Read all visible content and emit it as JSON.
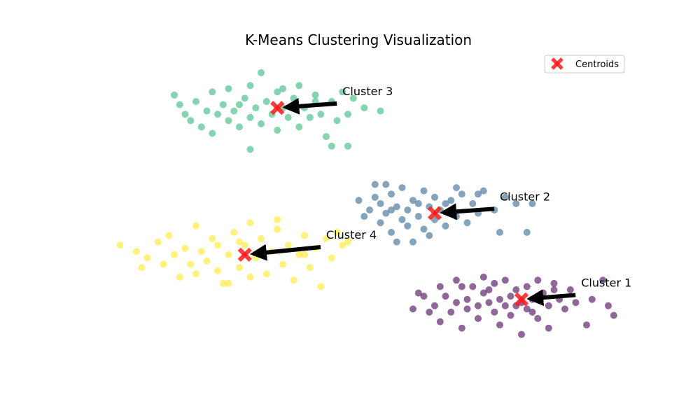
{
  "chart_data": {
    "type": "scatter",
    "title": "K-Means Clustering Visualization",
    "xlabel": "",
    "ylabel": "",
    "xlim": [
      0,
      10
    ],
    "ylim": [
      0,
      10
    ],
    "axes_visible": false,
    "grid": false,
    "legend": {
      "position": "top-right",
      "entries": [
        "Centroids"
      ]
    },
    "colors": {
      "cluster_1": "#440154",
      "cluster_2": "#31688e",
      "cluster_3": "#35b779",
      "cluster_4": "#fde725",
      "centroid": "#ff1a1a",
      "arrow": "#000000"
    },
    "series": [
      {
        "cluster": 1,
        "color_key": "cluster_1",
        "points": [
          [
            6.0,
            1.9
          ],
          [
            6.2,
            2.3
          ],
          [
            6.3,
            1.8
          ],
          [
            6.4,
            2.0
          ],
          [
            6.5,
            2.6
          ],
          [
            6.5,
            1.5
          ],
          [
            6.6,
            2.3
          ],
          [
            6.7,
            1.8
          ],
          [
            6.8,
            2.1
          ],
          [
            6.9,
            2.6
          ],
          [
            6.9,
            1.3
          ],
          [
            7.0,
            2.2
          ],
          [
            7.0,
            1.9
          ],
          [
            7.1,
            2.6
          ],
          [
            7.2,
            2.0
          ],
          [
            7.2,
            1.6
          ],
          [
            7.3,
            2.9
          ],
          [
            7.3,
            2.4
          ],
          [
            7.4,
            2.1
          ],
          [
            7.5,
            2.7
          ],
          [
            7.5,
            1.8
          ],
          [
            7.6,
            2.2
          ],
          [
            7.6,
            1.4
          ],
          [
            7.7,
            2.8
          ],
          [
            7.7,
            2.0
          ],
          [
            7.8,
            2.3
          ],
          [
            7.8,
            1.7
          ],
          [
            7.9,
            2.5
          ],
          [
            8.0,
            2.1
          ],
          [
            8.0,
            1.1
          ],
          [
            8.1,
            2.6
          ],
          [
            8.1,
            1.9
          ],
          [
            8.2,
            2.2
          ],
          [
            8.3,
            2.8
          ],
          [
            8.3,
            1.6
          ],
          [
            8.4,
            2.4
          ],
          [
            8.5,
            2.0
          ],
          [
            8.5,
            1.3
          ],
          [
            8.6,
            2.7
          ],
          [
            8.7,
            2.2
          ],
          [
            8.8,
            1.9
          ],
          [
            8.9,
            2.5
          ],
          [
            9.0,
            2.1
          ],
          [
            9.2,
            1.4
          ],
          [
            9.3,
            2.2
          ],
          [
            9.5,
            2.8
          ],
          [
            9.6,
            2.0
          ],
          [
            9.7,
            1.7
          ],
          [
            6.1,
            2.4
          ],
          [
            6.8,
            2.8
          ],
          [
            7.4,
            2.5
          ],
          [
            7.9,
            2.0
          ],
          [
            8.2,
            1.8
          ],
          [
            8.6,
            2.5
          ]
        ]
      },
      {
        "cluster": 2,
        "color_key": "cluster_2",
        "points": [
          [
            5.0,
            5.3
          ],
          [
            5.1,
            4.8
          ],
          [
            5.2,
            5.0
          ],
          [
            5.3,
            5.4
          ],
          [
            5.4,
            4.6
          ],
          [
            5.4,
            5.2
          ],
          [
            5.5,
            4.9
          ],
          [
            5.6,
            5.5
          ],
          [
            5.6,
            4.3
          ],
          [
            5.7,
            5.1
          ],
          [
            5.8,
            4.7
          ],
          [
            5.8,
            5.7
          ],
          [
            5.9,
            5.0
          ],
          [
            5.9,
            4.5
          ],
          [
            6.0,
            5.3
          ],
          [
            6.1,
            4.8
          ],
          [
            6.2,
            5.6
          ],
          [
            6.2,
            4.4
          ],
          [
            6.3,
            5.1
          ],
          [
            6.4,
            4.7
          ],
          [
            6.4,
            5.4
          ],
          [
            6.5,
            5.0
          ],
          [
            6.6,
            4.5
          ],
          [
            6.7,
            5.3
          ],
          [
            6.8,
            4.8
          ],
          [
            6.9,
            5.5
          ],
          [
            7.0,
            4.6
          ],
          [
            7.1,
            5.2
          ],
          [
            7.2,
            4.9
          ],
          [
            7.3,
            5.6
          ],
          [
            7.5,
            5.0
          ],
          [
            7.6,
            4.3
          ],
          [
            7.7,
            5.4
          ],
          [
            7.9,
            5.2
          ],
          [
            8.1,
            4.3
          ],
          [
            8.2,
            5.2
          ],
          [
            5.3,
            5.8
          ],
          [
            5.5,
            5.8
          ],
          [
            5.7,
            4.0
          ],
          [
            6.0,
            4.0
          ],
          [
            6.3,
            4.2
          ],
          [
            6.8,
            5.7
          ],
          [
            7.2,
            5.5
          ],
          [
            5.6,
            5.0
          ],
          [
            6.1,
            5.2
          ],
          [
            6.6,
            5.2
          ]
        ]
      },
      {
        "cluster": 3,
        "color_key": "cluster_3",
        "points": [
          [
            1.6,
            8.6
          ],
          [
            1.7,
            8.3
          ],
          [
            1.8,
            8.0
          ],
          [
            1.9,
            7.8
          ],
          [
            2.0,
            8.4
          ],
          [
            2.1,
            7.6
          ],
          [
            2.2,
            8.1
          ],
          [
            2.3,
            8.7
          ],
          [
            2.3,
            7.4
          ],
          [
            2.4,
            8.0
          ],
          [
            2.5,
            8.3
          ],
          [
            2.6,
            7.8
          ],
          [
            2.6,
            8.8
          ],
          [
            2.7,
            8.1
          ],
          [
            2.8,
            7.6
          ],
          [
            2.9,
            8.5
          ],
          [
            3.0,
            7.9
          ],
          [
            3.0,
            8.9
          ],
          [
            3.1,
            8.2
          ],
          [
            3.2,
            7.7
          ],
          [
            3.2,
            9.3
          ],
          [
            3.3,
            8.4
          ],
          [
            3.4,
            8.0
          ],
          [
            3.5,
            7.5
          ],
          [
            3.5,
            8.7
          ],
          [
            3.6,
            8.2
          ],
          [
            3.7,
            7.9
          ],
          [
            3.8,
            8.5
          ],
          [
            3.9,
            7.6
          ],
          [
            3.9,
            8.9
          ],
          [
            4.0,
            8.2
          ],
          [
            4.1,
            7.9
          ],
          [
            4.2,
            8.6
          ],
          [
            4.3,
            8.0
          ],
          [
            4.4,
            7.3
          ],
          [
            4.5,
            8.4
          ],
          [
            4.6,
            7.8
          ],
          [
            4.7,
            8.7
          ],
          [
            4.8,
            8.0
          ],
          [
            4.9,
            8.5
          ],
          [
            5.1,
            8.2
          ],
          [
            5.4,
            8.1
          ],
          [
            3.0,
            6.9
          ],
          [
            4.5,
            7.0
          ],
          [
            4.8,
            7.0
          ],
          [
            2.8,
            8.3
          ],
          [
            3.6,
            8.8
          ],
          [
            4.2,
            8.4
          ]
        ]
      },
      {
        "cluster": 4,
        "color_key": "cluster_4",
        "points": [
          [
            0.6,
            3.9
          ],
          [
            0.9,
            3.7
          ],
          [
            1.0,
            3.2
          ],
          [
            1.1,
            3.5
          ],
          [
            1.3,
            4.0
          ],
          [
            1.4,
            3.3
          ],
          [
            1.5,
            4.2
          ],
          [
            1.6,
            3.6
          ],
          [
            1.7,
            2.9
          ],
          [
            1.8,
            3.8
          ],
          [
            1.9,
            3.3
          ],
          [
            2.0,
            4.5
          ],
          [
            2.0,
            3.0
          ],
          [
            2.1,
            3.7
          ],
          [
            2.2,
            3.4
          ],
          [
            2.3,
            4.1
          ],
          [
            2.4,
            3.1
          ],
          [
            2.4,
            3.9
          ],
          [
            2.5,
            2.7
          ],
          [
            2.6,
            3.6
          ],
          [
            2.7,
            4.3
          ],
          [
            2.8,
            3.2
          ],
          [
            2.9,
            3.9
          ],
          [
            3.0,
            2.9
          ],
          [
            3.0,
            4.6
          ],
          [
            3.1,
            3.5
          ],
          [
            3.2,
            4.1
          ],
          [
            3.3,
            3.0
          ],
          [
            3.4,
            3.7
          ],
          [
            3.5,
            4.4
          ],
          [
            3.6,
            3.3
          ],
          [
            3.7,
            3.9
          ],
          [
            3.8,
            2.8
          ],
          [
            3.9,
            3.6
          ],
          [
            4.0,
            4.2
          ],
          [
            4.1,
            3.2
          ],
          [
            4.2,
            3.8
          ],
          [
            4.3,
            2.6
          ],
          [
            4.4,
            4.1
          ],
          [
            4.5,
            3.5
          ],
          [
            4.6,
            4.3
          ],
          [
            4.7,
            3.9
          ],
          [
            4.8,
            4.0
          ],
          [
            3.5,
            4.7
          ],
          [
            2.6,
            2.7
          ],
          [
            3.2,
            3.6
          ],
          [
            4.0,
            3.6
          ],
          [
            2.8,
            4.0
          ]
        ]
      }
    ],
    "centroids": [
      {
        "cluster": 1,
        "x": 8.0,
        "y": 2.2
      },
      {
        "cluster": 2,
        "x": 6.4,
        "y": 4.9
      },
      {
        "cluster": 3,
        "x": 3.5,
        "y": 8.2
      },
      {
        "cluster": 4,
        "x": 2.9,
        "y": 3.6
      }
    ],
    "annotations": [
      {
        "text": "Cluster 1",
        "target": 1,
        "text_x": 9.1,
        "text_y": 2.6
      },
      {
        "text": "Cluster 2",
        "target": 2,
        "text_x": 7.6,
        "text_y": 5.3
      },
      {
        "text": "Cluster 3",
        "target": 3,
        "text_x": 4.7,
        "text_y": 8.6
      },
      {
        "text": "Cluster 4",
        "target": 4,
        "text_x": 4.4,
        "text_y": 4.1
      }
    ]
  }
}
